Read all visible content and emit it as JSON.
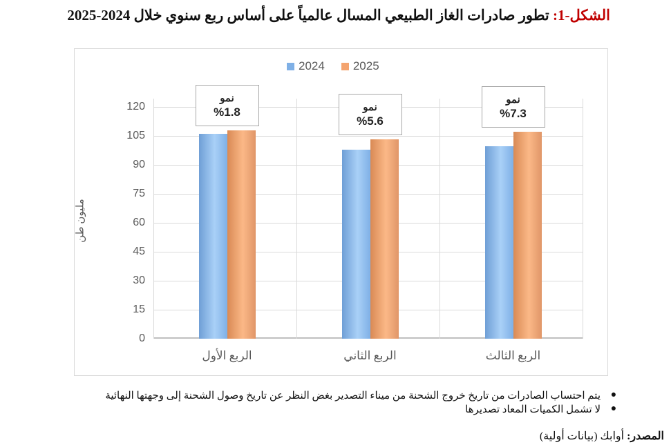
{
  "figure": {
    "title_prefix": "الشكل-1:",
    "title_text": "تطور صادرات الغاز الطبيعي المسال عالمياً على أساس ربع سنوي خلال 2024-2025"
  },
  "chart_data": {
    "type": "bar",
    "title": "تطور صادرات الغاز الطبيعي المسال عالمياً على أساس ربع سنوي خلال 2024-2025",
    "xlabel": "",
    "ylabel": "مليون طن",
    "ylim": [
      0,
      120
    ],
    "yticks": [
      0,
      15,
      30,
      45,
      60,
      75,
      90,
      105,
      120
    ],
    "yticks_labels": [
      "0",
      "15",
      "30",
      "45",
      "60",
      "75",
      "90",
      "105",
      "120"
    ],
    "categories": [
      "الربع الأول",
      "الربع الثاني",
      "الربع  الثالث"
    ],
    "series": [
      {
        "name": "2024",
        "color": "#8fbdec",
        "values": [
          106.1,
          97.9,
          99.8
        ]
      },
      {
        "name": "2025",
        "color": "#f4a46f",
        "values": [
          108.0,
          103.3,
          107.1
        ]
      }
    ],
    "annotations": [
      {
        "category": "الربع الأول",
        "label": "نمو",
        "value": "%1.8"
      },
      {
        "category": "الربع الثاني",
        "label": "نمو",
        "value": "%5.6"
      },
      {
        "category": "الربع  الثالث",
        "label": "نمو",
        "value": "%7.3"
      }
    ],
    "legend_position": "top",
    "grid": true
  },
  "notes": [
    "يتم احتساب الصادرات من تاريخ خروج الشحنة من ميناء التصدير بغض النظر عن تاريخ وصول الشحنة إلى وجهتها النهائية",
    "لا تشمل الكميات المعاد تصديرها"
  ],
  "source": {
    "label": "المصدر:",
    "text": "أوابك (بيانات أولية)"
  }
}
